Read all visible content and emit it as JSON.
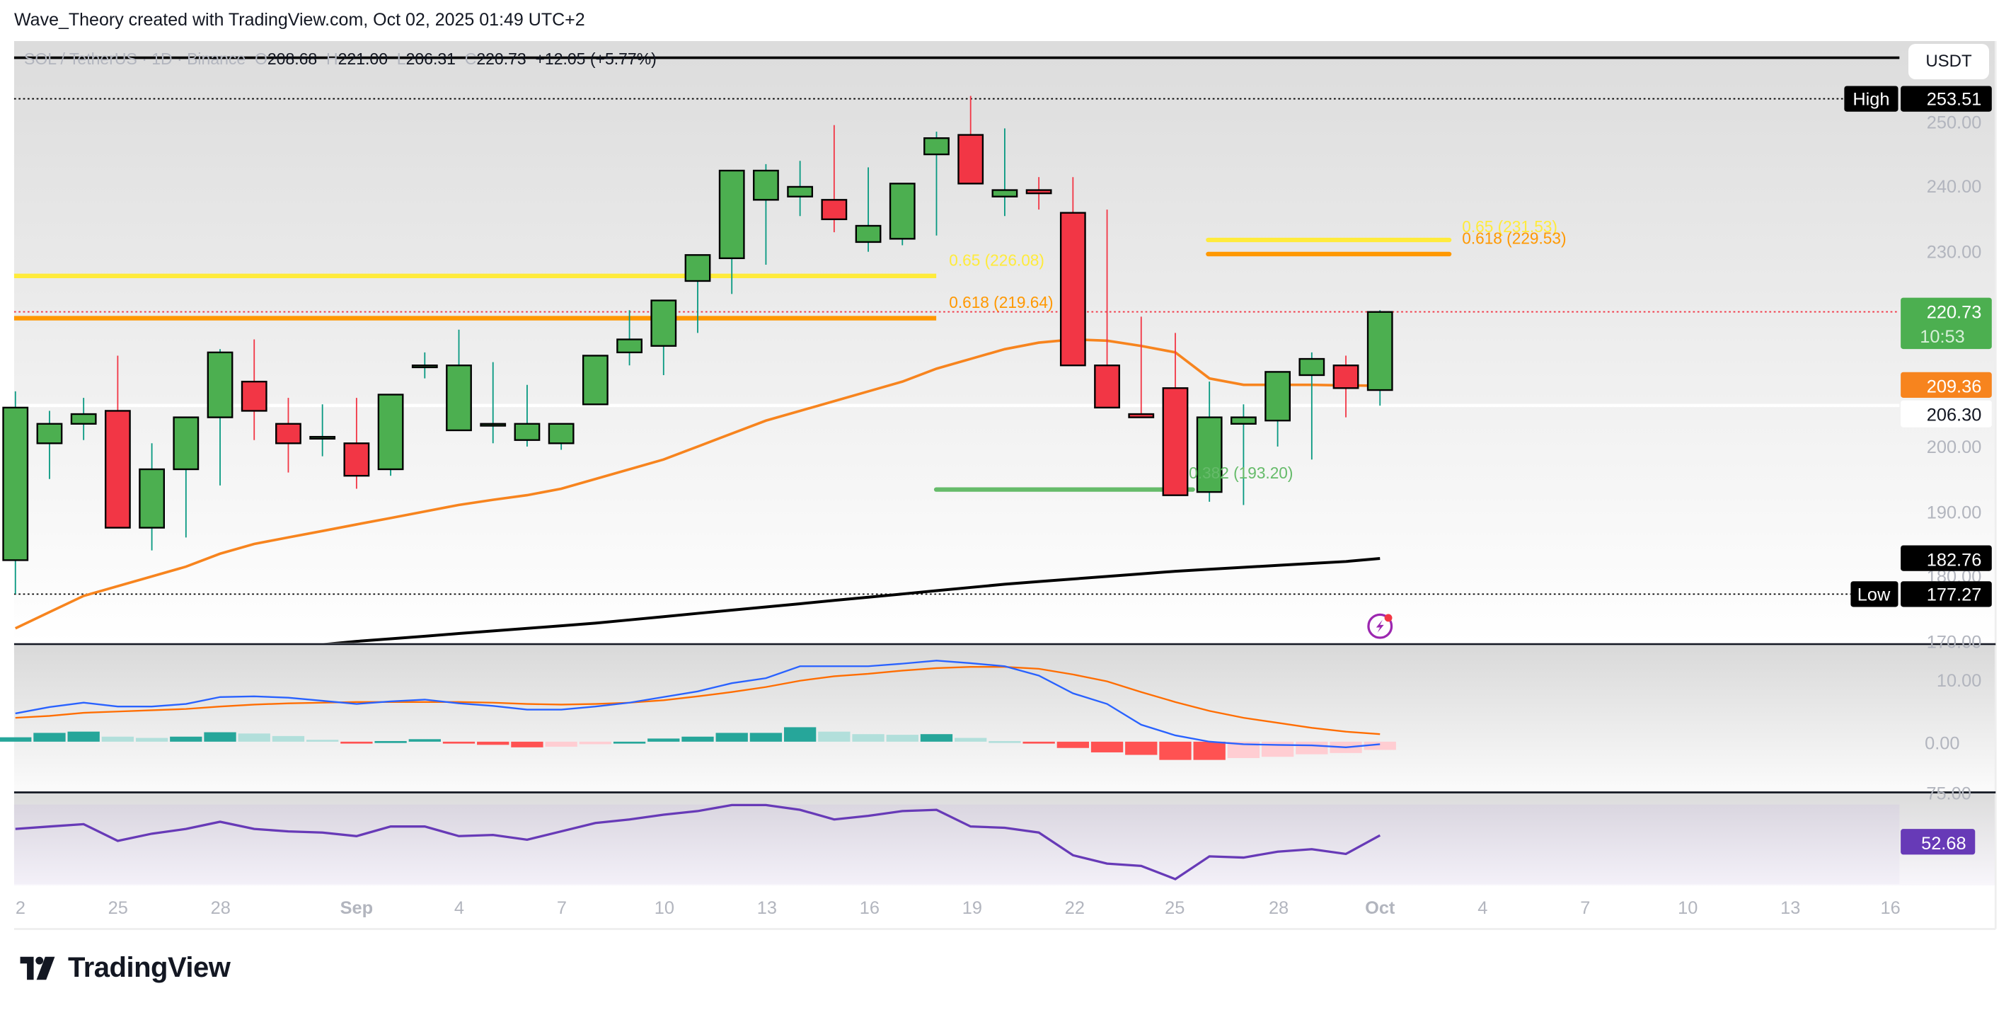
{
  "attribution": "Wave_Theory created with TradingView.com, Oct 02, 2025 01:49 UTC+2",
  "legend": {
    "symbol": "SOL / TetherUS · 1D · Binance",
    "open_label": "O",
    "open": "208.68",
    "high_label": "H",
    "high": "221.00",
    "low_label": "L",
    "low": "206.31",
    "close_label": "C",
    "close": "220.73",
    "change": "+12.05 (+5.77%)"
  },
  "currency_button": "USDT",
  "price_axis": {
    "ticks": [
      "250.00",
      "240.00",
      "230.00",
      "200.00",
      "190.00",
      "180.00",
      "170.00"
    ],
    "high_label": "High",
    "high_value": "253.51",
    "low_label": "Low",
    "low_value": "177.27",
    "last_price": "220.73",
    "countdown": "10:53",
    "ma50_value": "209.36",
    "line_value": "206.30",
    "ma200_value": "182.76"
  },
  "macd_axis": {
    "ticks": [
      "10.00",
      "0.00"
    ]
  },
  "rsi_axis": {
    "ticks": [
      "75.00"
    ],
    "value": "52.68"
  },
  "time_axis": [
    "2",
    "25",
    "28",
    "Sep",
    "4",
    "7",
    "10",
    "13",
    "16",
    "19",
    "22",
    "25",
    "28",
    "Oct",
    "4",
    "7",
    "10",
    "13",
    "16"
  ],
  "fib_labels": {
    "left_065": "0.65 (226.08)",
    "left_0618": "0.618 (219.64)",
    "right_065": "0.65 (231.53)",
    "right_0618": "0.618 (229.53)",
    "support": "0.382 (193.20)"
  },
  "brand": "TradingView",
  "colors": {
    "up": "#4caf50",
    "down": "#f23645",
    "wick_up": "#089981",
    "wick_down": "#f23645",
    "fib_065": "#ffeb3b",
    "fib_0618": "#ff9800",
    "fib_support": "#66bb6a",
    "ma50": "#f7841e",
    "ma200": "#000000",
    "macd": "#2962ff",
    "signal": "#ff6d00",
    "rsi": "#673ab7"
  },
  "chart_data": [
    {
      "type": "candlestick",
      "title": "SOL / TetherUS · 1D · Binance",
      "ylabel": "USDT",
      "ylim": [
        170,
        255
      ],
      "x": [
        "Aug 22",
        "Aug 23",
        "Aug 24",
        "Aug 25",
        "Aug 26",
        "Aug 27",
        "Aug 28",
        "Aug 29",
        "Aug 30",
        "Aug 31",
        "Sep 1",
        "Sep 2",
        "Sep 3",
        "Sep 4",
        "Sep 5",
        "Sep 6",
        "Sep 7",
        "Sep 8",
        "Sep 9",
        "Sep 10",
        "Sep 11",
        "Sep 12",
        "Sep 13",
        "Sep 14",
        "Sep 15",
        "Sep 16",
        "Sep 17",
        "Sep 18",
        "Sep 19",
        "Sep 20",
        "Sep 21",
        "Sep 22",
        "Sep 23",
        "Sep 24",
        "Sep 25",
        "Sep 26",
        "Sep 27",
        "Sep 28",
        "Sep 29",
        "Sep 30",
        "Oct 1"
      ],
      "open": [
        182.5,
        200.5,
        203.5,
        205.5,
        187.5,
        196.5,
        204.5,
        210.0,
        203.5,
        201.5,
        200.5,
        196.5,
        212.5,
        202.5,
        203.5,
        201.0,
        200.5,
        206.5,
        214.5,
        215.5,
        225.5,
        229.0,
        238.0,
        238.5,
        238.0,
        231.5,
        232.0,
        245.0,
        248.0,
        238.5,
        239.5,
        236.0,
        212.5,
        205.0,
        209.0,
        193.0,
        203.5,
        204.0,
        211.0,
        212.5,
        208.7
      ],
      "high": [
        208.5,
        205.5,
        207.5,
        214.0,
        200.5,
        204.5,
        215.0,
        216.5,
        207.5,
        206.5,
        207.5,
        200.5,
        214.5,
        218.0,
        213.0,
        209.5,
        203.5,
        212.5,
        221.0,
        222.0,
        226.5,
        230.0,
        243.5,
        244.0,
        249.5,
        243.0,
        240.5,
        248.5,
        254.0,
        249.0,
        241.5,
        241.5,
        236.5,
        220.0,
        217.5,
        210.0,
        206.5,
        209.5,
        214.5,
        214.0,
        221.0
      ],
      "low": [
        177.3,
        195.0,
        201.0,
        199.0,
        184.0,
        186.0,
        194.0,
        201.0,
        196.0,
        198.5,
        193.5,
        195.5,
        210.5,
        202.5,
        200.5,
        200.0,
        199.5,
        206.5,
        212.5,
        211.0,
        217.5,
        223.5,
        228.0,
        235.5,
        233.0,
        230.0,
        231.0,
        232.5,
        242.5,
        235.5,
        236.5,
        234.0,
        212.5,
        205.0,
        204.0,
        191.5,
        191.0,
        200.0,
        198.0,
        204.5,
        206.3
      ],
      "close": [
        206.0,
        203.5,
        205.0,
        187.5,
        196.5,
        204.5,
        214.5,
        205.5,
        200.5,
        201.5,
        195.5,
        208.0,
        212.5,
        212.5,
        203.5,
        203.5,
        203.5,
        214.0,
        216.5,
        222.5,
        229.5,
        242.5,
        242.5,
        240.0,
        235.0,
        234.0,
        240.5,
        247.5,
        240.5,
        239.5,
        239.0,
        212.5,
        206.0,
        204.5,
        192.5,
        204.5,
        204.5,
        211.5,
        213.5,
        209.0,
        220.73
      ]
    },
    {
      "type": "line",
      "title": "Moving averages",
      "series": [
        {
          "name": "MA50",
          "color": "#f7841e",
          "last": 209.36
        },
        {
          "name": "MA200",
          "color": "#000000",
          "last": 182.76
        }
      ]
    },
    {
      "type": "bar",
      "title": "MACD",
      "ylim": [
        -6,
        16
      ],
      "series": [
        {
          "name": "MACD",
          "values": [
            4.5,
            5.5,
            6.2,
            5.6,
            5.6,
            6.0,
            7.1,
            7.2,
            7.0,
            6.5,
            6.0,
            6.4,
            6.7,
            6.1,
            5.7,
            5.1,
            5.1,
            5.6,
            6.2,
            7.1,
            8.0,
            9.3,
            10.1,
            12.0,
            12.0,
            12.0,
            12.4,
            12.9,
            12.5,
            12.0,
            10.5,
            7.7,
            6.0,
            2.7,
            1.0,
            0.0,
            -0.4,
            -0.5,
            -0.6,
            -0.9,
            -0.4
          ]
        },
        {
          "name": "Signal",
          "values": [
            3.8,
            4.1,
            4.6,
            4.8,
            5.0,
            5.2,
            5.6,
            5.9,
            6.1,
            6.2,
            6.3,
            6.3,
            6.3,
            6.3,
            6.2,
            6.0,
            5.9,
            6.0,
            6.2,
            6.6,
            7.2,
            7.9,
            8.7,
            9.7,
            10.4,
            10.8,
            11.3,
            11.7,
            11.9,
            11.9,
            11.6,
            10.7,
            9.6,
            7.9,
            6.3,
            4.9,
            3.8,
            3.0,
            2.2,
            1.6,
            1.2
          ]
        },
        {
          "name": "Histogram",
          "values": [
            0.7,
            1.4,
            1.6,
            0.8,
            0.6,
            0.8,
            1.5,
            1.3,
            0.9,
            0.3,
            -0.3,
            0.1,
            0.4,
            -0.2,
            -0.5,
            -0.9,
            -0.8,
            -0.4,
            0.0,
            0.5,
            0.8,
            1.4,
            1.4,
            2.3,
            1.6,
            1.2,
            1.1,
            1.2,
            0.6,
            0.1,
            -0.1,
            -1.0,
            -1.7,
            -2.1,
            -2.9,
            -2.9,
            -2.6,
            -2.4,
            -2.0,
            -1.8,
            -1.3
          ]
        }
      ]
    },
    {
      "type": "line",
      "title": "RSI",
      "ylim": [
        25,
        80
      ],
      "series": [
        {
          "name": "RSI",
          "values": [
            58,
            60,
            62,
            48,
            54,
            58,
            64,
            58,
            56,
            55,
            52,
            60,
            60,
            52,
            53,
            49,
            56,
            63,
            66,
            70,
            73,
            78,
            78,
            74,
            66,
            69,
            73,
            74,
            60,
            59,
            55,
            36,
            29,
            27,
            16,
            35,
            34,
            39,
            41,
            37,
            52.68
          ]
        }
      ]
    }
  ]
}
